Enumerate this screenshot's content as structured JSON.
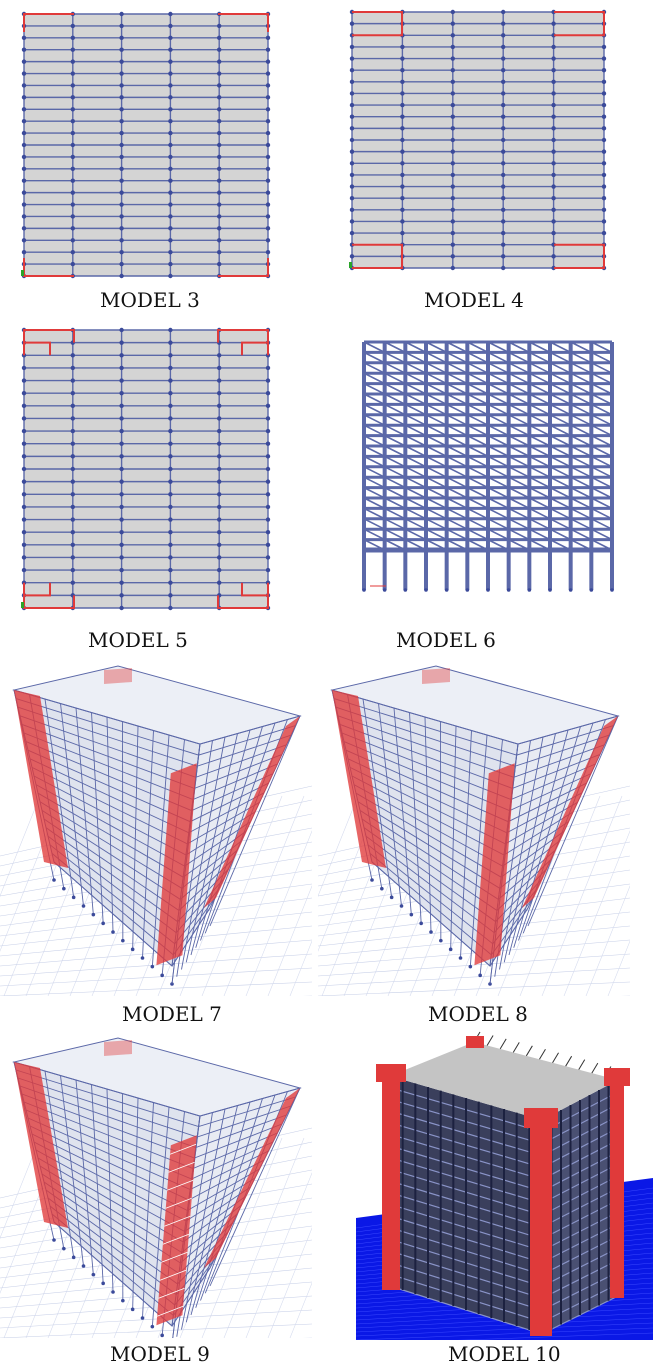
{
  "captions": {
    "m3": "MODEL 3",
    "m4": "MODEL 4",
    "m5": "MODEL 5",
    "m6": "MODEL 6",
    "m7": "MODEL 7",
    "m8": "MODEL 8",
    "m9": "MODEL 9",
    "m10": "MODEL 10"
  },
  "colors": {
    "frame": "#5b68a8",
    "node": "#3b4a9a",
    "slab": "#d4d4d4",
    "wall": "#e03a3a",
    "ground": "#0a18e6"
  }
}
